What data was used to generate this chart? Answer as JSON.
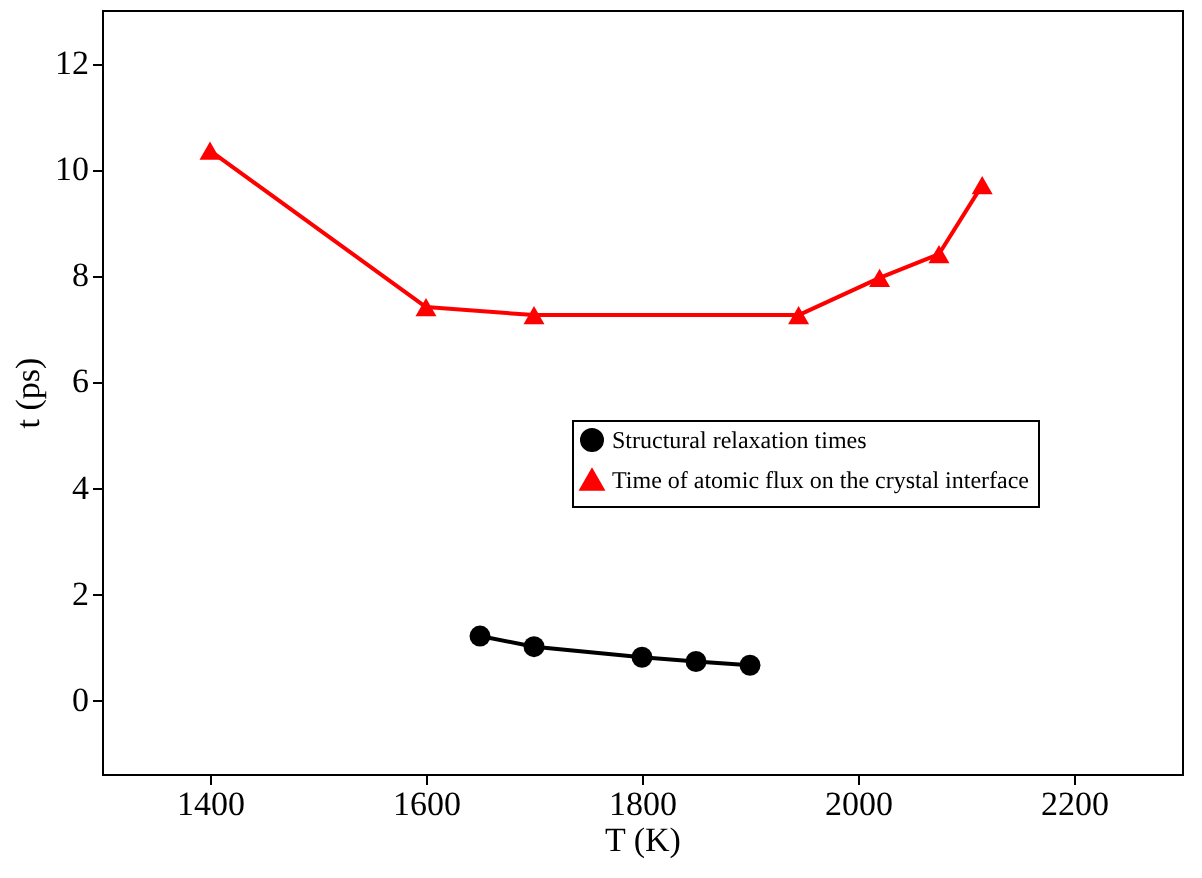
{
  "chart_data": {
    "type": "line",
    "xlabel": "T (K)",
    "ylabel": "t (ps)",
    "xlim": [
      1300,
      2300
    ],
    "xticks": [
      1400,
      1600,
      1800,
      2000,
      2200
    ],
    "ylim": [
      -1.4,
      13
    ],
    "yticks": [
      0,
      2,
      4,
      6,
      8,
      10,
      12
    ],
    "grid": false,
    "legend": "right",
    "line_style": "solid",
    "series": [
      {
        "name": "Structural relaxation times",
        "color": "#000000",
        "marker": "circle",
        "x": [
          1650,
          1700,
          1800,
          1850,
          1900
        ],
        "values": [
          1.2,
          1.0,
          0.8,
          0.72,
          0.65
        ]
      },
      {
        "name": "Time of atomic flux on the crystal interface",
        "color": "#ff0000",
        "marker": "triangle",
        "x": [
          1400,
          1600,
          1700,
          1945,
          2020,
          2075,
          2115
        ],
        "values": [
          10.35,
          7.4,
          7.25,
          7.25,
          7.95,
          8.4,
          9.7
        ]
      }
    ]
  }
}
